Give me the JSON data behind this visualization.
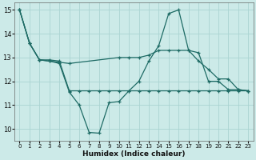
{
  "xlabel": "Humidex (Indice chaleur)",
  "ylabel": "",
  "bg_color": "#cceae8",
  "grid_color": "#aad4d2",
  "line_color": "#1e6b65",
  "xlim": [
    -0.5,
    23.5
  ],
  "ylim": [
    9.5,
    15.3
  ],
  "yticks": [
    10,
    11,
    12,
    13,
    14,
    15
  ],
  "xticks": [
    0,
    1,
    2,
    3,
    4,
    5,
    6,
    7,
    8,
    9,
    10,
    11,
    12,
    13,
    14,
    15,
    16,
    17,
    18,
    19,
    20,
    21,
    22,
    23
  ],
  "line1_x": [
    0,
    1,
    2,
    3,
    4,
    5,
    6,
    7,
    8,
    9,
    10,
    11,
    12,
    13,
    14,
    15,
    16,
    17,
    18,
    19,
    20,
    21,
    22,
    23
  ],
  "line1_y": [
    15.0,
    13.6,
    12.9,
    12.9,
    12.85,
    11.6,
    11.6,
    11.6,
    11.6,
    11.6,
    11.6,
    11.6,
    11.6,
    11.6,
    11.6,
    11.6,
    11.6,
    11.6,
    11.6,
    11.6,
    11.6,
    11.6,
    11.6,
    11.6
  ],
  "line2_x": [
    0,
    1,
    2,
    3,
    4,
    5,
    10,
    11,
    12,
    13,
    14,
    15,
    16,
    17,
    18,
    19,
    20,
    21,
    22,
    23
  ],
  "line2_y": [
    15.0,
    13.6,
    12.9,
    12.85,
    12.8,
    12.75,
    13.0,
    13.0,
    13.0,
    13.1,
    13.3,
    13.3,
    13.3,
    13.3,
    12.85,
    12.5,
    12.1,
    12.1,
    11.65,
    11.6
  ],
  "line3_x": [
    0,
    1,
    2,
    3,
    4,
    5,
    6,
    7,
    8,
    9,
    10,
    11,
    12,
    13,
    14,
    15,
    16,
    17,
    18,
    19,
    20,
    21,
    22,
    23
  ],
  "line3_y": [
    15.0,
    13.6,
    12.9,
    12.85,
    12.75,
    11.55,
    11.0,
    9.85,
    9.82,
    11.1,
    11.15,
    11.6,
    12.0,
    12.85,
    13.5,
    14.85,
    15.0,
    13.3,
    13.2,
    12.0,
    12.0,
    11.65,
    11.65,
    11.6
  ]
}
